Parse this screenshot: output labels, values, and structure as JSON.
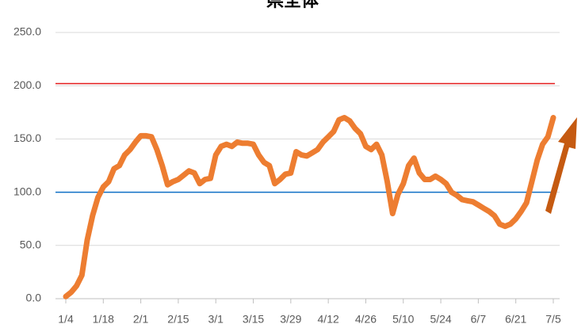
{
  "chart_data": {
    "type": "line",
    "title": "県全体",
    "categories": [
      "1/4",
      null,
      null,
      null,
      null,
      null,
      null,
      "1/18",
      null,
      null,
      null,
      null,
      null,
      null,
      "2/1",
      null,
      null,
      null,
      null,
      null,
      null,
      "2/15",
      null,
      null,
      null,
      null,
      null,
      null,
      "3/1",
      null,
      null,
      null,
      null,
      null,
      null,
      "3/15",
      null,
      null,
      null,
      null,
      null,
      null,
      "3/29",
      null,
      null,
      null,
      null,
      null,
      null,
      "4/12",
      null,
      null,
      null,
      null,
      null,
      null,
      "4/26",
      null,
      null,
      null,
      null,
      null,
      null,
      "5/10",
      null,
      null,
      null,
      null,
      null,
      null,
      "5/24",
      null,
      null,
      null,
      null,
      null,
      null,
      "6/7",
      null,
      null,
      null,
      null,
      null,
      null,
      "6/21",
      null,
      null,
      null,
      null,
      null,
      null,
      "7/5"
    ],
    "series": [
      {
        "color": "#ed7d31",
        "values": [
          2,
          6,
          12,
          22,
          55,
          78,
          95,
          105,
          110,
          122,
          125,
          135,
          140,
          147,
          153,
          153,
          152,
          140,
          125,
          107,
          110,
          112,
          116,
          120,
          118,
          108,
          112,
          113,
          135,
          143,
          145,
          143,
          147,
          146,
          146,
          145,
          135,
          128,
          125,
          108,
          112,
          117,
          118,
          138,
          135,
          134,
          137,
          140,
          147,
          152,
          157,
          168,
          170,
          167,
          160,
          155,
          143,
          140,
          145,
          135,
          110,
          80,
          98,
          108,
          125,
          132,
          118,
          112,
          112,
          115,
          112,
          108,
          100,
          97,
          93,
          92,
          91,
          88,
          85,
          82,
          78,
          70,
          68,
          70,
          75,
          82,
          90,
          110,
          130,
          145,
          152,
          170
        ]
      }
    ],
    "reference_lines": [
      {
        "value": 100,
        "color": "#0f6fc6"
      },
      {
        "value": 202,
        "color": "#e41a1c"
      }
    ],
    "ylim": [
      0,
      250
    ],
    "yticks": [
      {
        "value": 0,
        "label": "0.0"
      },
      {
        "value": 50,
        "label": "50.0"
      },
      {
        "value": 100,
        "label": "100.0"
      },
      {
        "value": 150,
        "label": "150.0"
      },
      {
        "value": 200,
        "label": "200.0"
      },
      {
        "value": 250,
        "label": "250.0"
      }
    ],
    "grid": true
  }
}
